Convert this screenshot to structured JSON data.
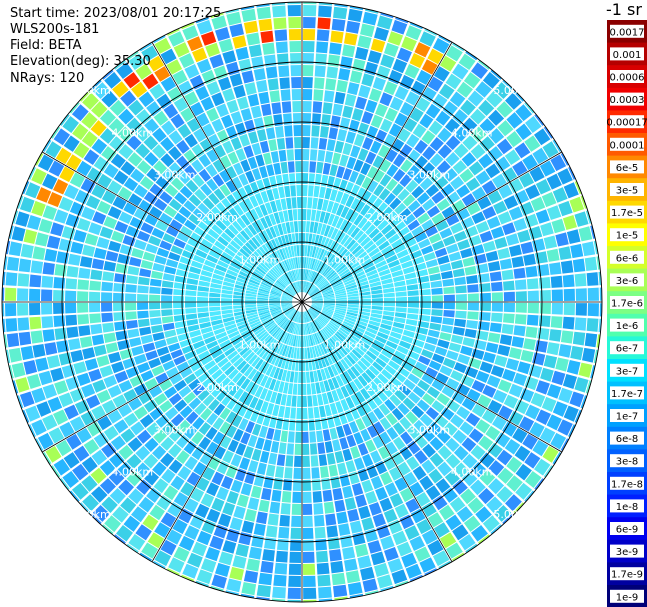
{
  "header": {
    "start_time": "Start time: 2023/08/01 20:17:25",
    "instrument": "WLS200s-181",
    "field": "Field: BETA",
    "elevation": "Elevation(deg): 35.30",
    "nrays": "NRays: 120"
  },
  "colorbar": {
    "unit": "-1 sr",
    "ticks": [
      "0.0017",
      "0.001",
      "0.0006",
      "0.0003",
      "0.00017",
      "0.0001",
      "6e-5",
      "3e-5",
      "1.7e-5",
      "1e-5",
      "6e-6",
      "3e-6",
      "1.7e-6",
      "1e-6",
      "6e-7",
      "3e-7",
      "1.7e-7",
      "1e-7",
      "6e-8",
      "3e-8",
      "1.7e-8",
      "1e-8",
      "6e-9",
      "3e-9",
      "1.7e-9",
      "1e-9"
    ],
    "colors": [
      "#8b0000",
      "#b50000",
      "#d80000",
      "#f00000",
      "#ff2a00",
      "#ff5a00",
      "#ff8800",
      "#ffb400",
      "#ffd800",
      "#ffff00",
      "#d4ff2a",
      "#a8ff56",
      "#7cff84",
      "#50ffae",
      "#26f8d8",
      "#00e0ff",
      "#00c0ff",
      "#00a0ff",
      "#0080ff",
      "#0060ff",
      "#0040ff",
      "#0020ff",
      "#0000ee",
      "#0000c8",
      "#0000a0",
      "#000078"
    ]
  },
  "range_labels": [
    "1.00km",
    "2.00km",
    "3.00km",
    "4.00km",
    "5.00km"
  ],
  "plot": {
    "rays": 120,
    "range_rings": 5
  }
}
